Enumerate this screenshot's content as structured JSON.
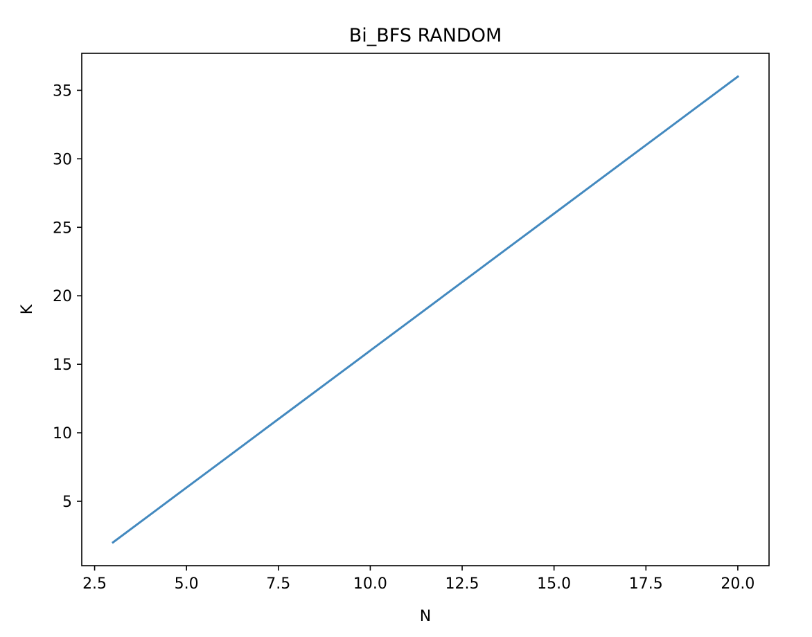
{
  "chart_data": {
    "type": "line",
    "title": "Bi_BFS RANDOM",
    "xlabel": "N",
    "ylabel": "K",
    "xlim": [
      2.15,
      20.85
    ],
    "ylim": [
      0.3,
      37.7
    ],
    "xticks": [
      2.5,
      5.0,
      7.5,
      10.0,
      12.5,
      15.0,
      17.5,
      20.0
    ],
    "xtick_labels": [
      "2.5",
      "5.0",
      "7.5",
      "10.0",
      "12.5",
      "15.0",
      "17.5",
      "20.0"
    ],
    "yticks": [
      5,
      10,
      15,
      20,
      25,
      30,
      35
    ],
    "ytick_labels": [
      "5",
      "10",
      "15",
      "20",
      "25",
      "30",
      "35"
    ],
    "grid": false,
    "legend": "none",
    "series": [
      {
        "color": "#4389bf",
        "x": [
          3,
          4,
          5,
          6,
          7,
          8,
          9,
          10,
          11,
          12,
          13,
          14,
          15,
          16,
          17,
          18,
          19,
          20
        ],
        "y": [
          2,
          4,
          6,
          8,
          10,
          12,
          14,
          16,
          18,
          20,
          22,
          24,
          26,
          28,
          30,
          32,
          34,
          36
        ]
      }
    ]
  }
}
